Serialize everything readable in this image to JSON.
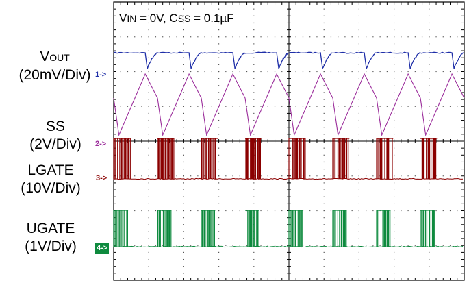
{
  "chart_data": {
    "type": "line",
    "title_conditions": {
      "vin_prefix": "V",
      "vin_sub": "IN",
      "vin_value": " = 0V, ",
      "css_prefix": "C",
      "css_sub": "SS",
      "css_value": " = 0.1µF"
    },
    "grid": true,
    "x_divisions": 10,
    "y_divisions": 8,
    "channels": [
      {
        "id": "ch1",
        "name_prefix": "V",
        "name_sub": "OUT",
        "scale": "(20mV/Div)",
        "marker": "1->",
        "color": "#1f2fa8",
        "waveform": "sawtooth-recovery",
        "hiccup_cycles": 8
      },
      {
        "id": "ch2",
        "name": "SS",
        "scale": "(2V/Div)",
        "marker": "2->",
        "color": "#9b2d9b",
        "waveform": "triangle",
        "hiccup_cycles": 8
      },
      {
        "id": "ch3",
        "name": "LGATE",
        "scale": "(10V/Div)",
        "marker": "3->",
        "color": "#8b0000",
        "waveform": "pulse-bursts",
        "hiccup_cycles": 8
      },
      {
        "id": "ch4",
        "name": "UGATE",
        "scale": "(1V/Div)",
        "marker": "4->",
        "color": "#0e8a3e",
        "waveform": "pulse-bursts",
        "hiccup_cycles": 8
      }
    ]
  }
}
